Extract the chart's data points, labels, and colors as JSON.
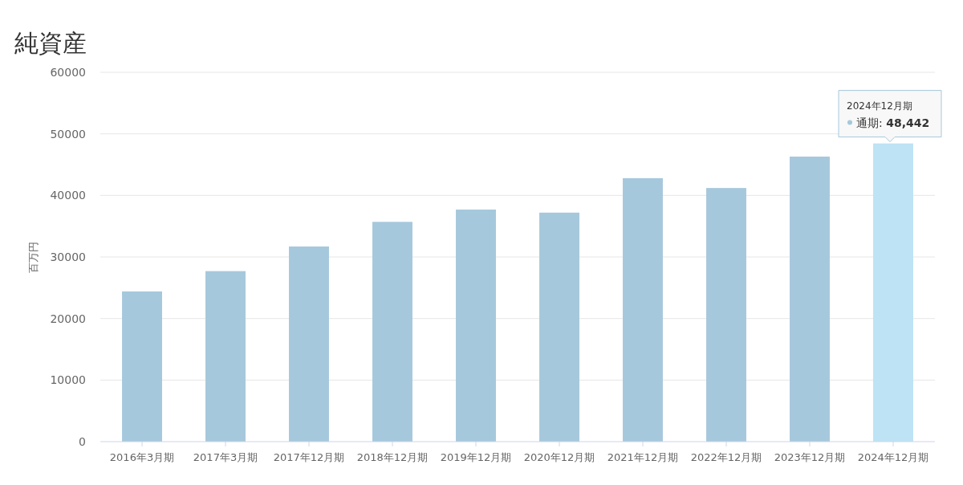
{
  "chart_data": {
    "type": "bar",
    "title": "純資産",
    "ylabel": "百万円",
    "categories": [
      "2016年3月期",
      "2017年3月期",
      "2017年12月期",
      "2018年12月期",
      "2019年12月期",
      "2020年12月期",
      "2021年12月期",
      "2022年12月期",
      "2023年12月期",
      "2024年12月期"
    ],
    "series": [
      {
        "name": "通期:",
        "color": "#a6c8dc",
        "colors": [
          "#a6c8dc",
          "#a6c8dc",
          "#a6c8dc",
          "#a6c8dc",
          "#a6c8dc",
          "#a6c8dc",
          "#a6c8dc",
          "#a6c8dc",
          "#a6c8dc",
          "#bde3f4"
        ],
        "values": [
          24400,
          27700,
          31700,
          35700,
          37700,
          37200,
          42800,
          41200,
          46300,
          48442
        ],
        "value_labels": [
          null,
          null,
          null,
          null,
          null,
          null,
          null,
          null,
          null,
          "48,442"
        ]
      }
    ],
    "annotations": [
      "2024年12月期"
    ],
    "ylim": [
      0,
      60000
    ],
    "yticks": [
      0,
      10000,
      20000,
      30000,
      40000,
      50000,
      60000
    ],
    "grid": "y"
  }
}
